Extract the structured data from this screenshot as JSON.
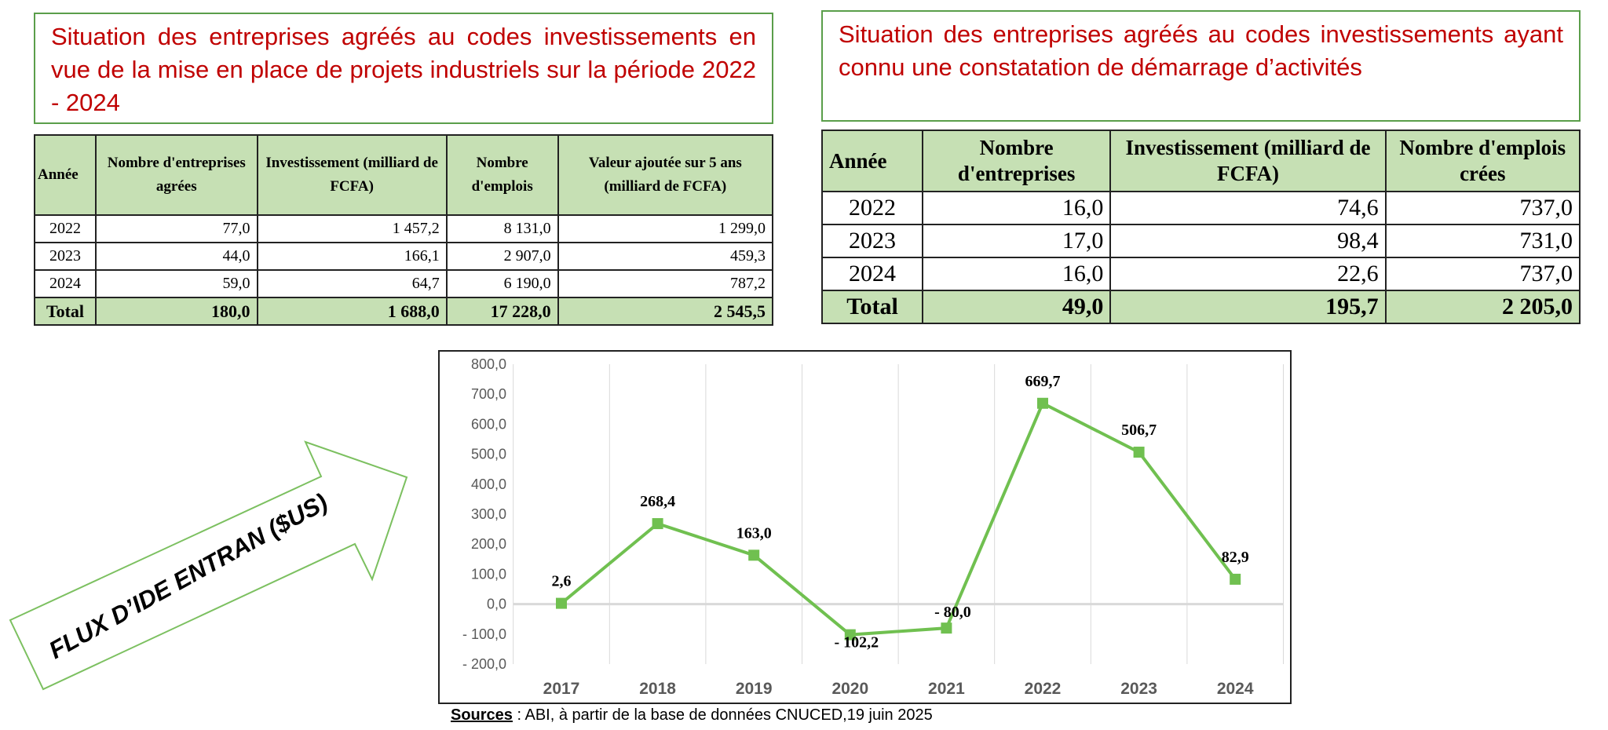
{
  "left_panel": {
    "title": "Situation des entreprises agréés au codes investissements en vue de la mise en place de projets industriels sur la période 2022 - 2024",
    "headers": [
      "Année",
      "Nombre d'entreprises agrées",
      "Investissement (milliard de FCFA)",
      "Nombre d'emplois",
      "Valeur ajoutée sur 5 ans (milliard de FCFA)"
    ],
    "rows": [
      [
        "2022",
        "77,0",
        "1 457,2",
        "8 131,0",
        "1 299,0"
      ],
      [
        "2023",
        "44,0",
        "166,1",
        "2 907,0",
        "459,3"
      ],
      [
        "2024",
        "59,0",
        "64,7",
        "6 190,0",
        "787,2"
      ]
    ],
    "total": [
      "Total",
      "180,0",
      "1 688,0",
      "17 228,0",
      "2 545,5"
    ]
  },
  "right_panel": {
    "title": "Situation des entreprises agréés au codes investissements ayant connu une constatation de démarrage d’activités",
    "headers": [
      "Année",
      "Nombre d'entreprises",
      "Investissement (milliard de FCFA)",
      "Nombre d'emplois crées"
    ],
    "rows": [
      [
        "2022",
        "16,0",
        "74,6",
        "737,0"
      ],
      [
        "2023",
        "17,0",
        "98,4",
        "731,0"
      ],
      [
        "2024",
        "16,0",
        "22,6",
        "737,0"
      ]
    ],
    "total": [
      "Total",
      "49,0",
      "195,7",
      "2 205,0"
    ]
  },
  "arrow_label": "FLUX D’IDE ENTRAN ($US)",
  "sources": {
    "label": "Sources",
    "text": " : ABI, à partir de la base de données CNUCED,19 juin 2025"
  },
  "chart_data": {
    "type": "line",
    "title": "FLUX D’IDE ENTRAN ($US)",
    "categories": [
      "2017",
      "2018",
      "2019",
      "2020",
      "2021",
      "2022",
      "2023",
      "2024"
    ],
    "series": [
      {
        "name": "Flux d'IDE entrant",
        "values": [
          2.6,
          268.4,
          163.0,
          -102.2,
          -80.0,
          669.7,
          506.7,
          82.9
        ],
        "color": "#70c050"
      }
    ],
    "data_labels": [
      "2,6",
      "268,4",
      "163,0",
      "- 102,2",
      "- 80,0",
      "669,7",
      "506,7",
      "82,9"
    ],
    "yticks": [
      "800,0",
      "700,0",
      "600,0",
      "500,0",
      "400,0",
      "300,0",
      "200,0",
      "100,0",
      "0,0",
      "- 100,0",
      "- 200,0"
    ],
    "ylim": [
      -200,
      800
    ],
    "grid": "vertical",
    "xlabel": "",
    "ylabel": ""
  }
}
